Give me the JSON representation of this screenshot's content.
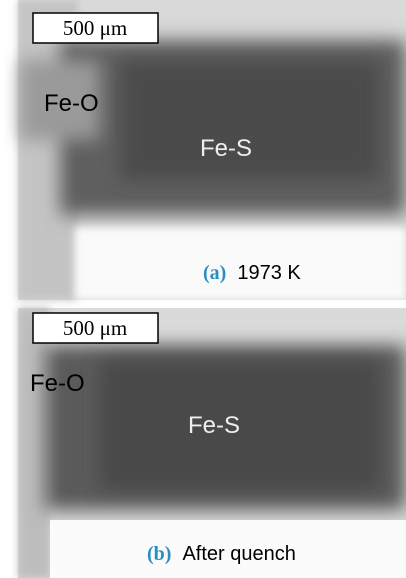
{
  "panels": [
    {
      "scale_bar": "500 μm",
      "labels": {
        "left": "Fe-O",
        "center": "Fe-S"
      },
      "caption": {
        "letter": "(a)",
        "text": "1973 K"
      }
    },
    {
      "scale_bar": "500 μm",
      "labels": {
        "left": "Fe-O",
        "center": "Fe-S"
      },
      "caption": {
        "letter": "(b)",
        "text": "After quench"
      }
    }
  ]
}
